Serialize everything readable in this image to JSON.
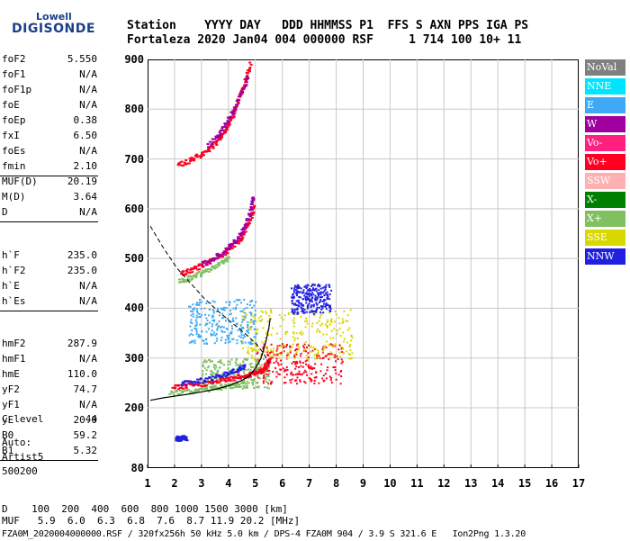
{
  "logo": {
    "line1": "Lowell",
    "line2": "DIGISONDE"
  },
  "header": {
    "row1": "Station    YYYY DAY   DDD HHMMSS P1  FFS S AXN PPS IGA PS",
    "row2": "Fortaleza 2020 Jan04 004 000000 RSF     1 714 100 10+ 11"
  },
  "params": {
    "group1": [
      {
        "name": "foF2",
        "value": "5.550"
      },
      {
        "name": "foF1",
        "value": "N/A"
      },
      {
        "name": "foF1p",
        "value": "N/A"
      },
      {
        "name": "foE",
        "value": "N/A"
      },
      {
        "name": "foEp",
        "value": "0.38"
      },
      {
        "name": "fxI",
        "value": "6.50"
      },
      {
        "name": "foEs",
        "value": "N/A"
      },
      {
        "name": "fmin",
        "value": "2.10"
      }
    ],
    "group2": [
      {
        "name": "MUF(D)",
        "value": "20.19"
      },
      {
        "name": "M(D)",
        "value": "3.64"
      },
      {
        "name": "D",
        "value": "N/A"
      }
    ],
    "group3": [
      {
        "name": "h`F",
        "value": "235.0"
      },
      {
        "name": "h`F2",
        "value": "235.0"
      },
      {
        "name": "h`E",
        "value": "N/A"
      },
      {
        "name": "h`Es",
        "value": "N/A"
      }
    ],
    "group4": [
      {
        "name": "hmF2",
        "value": "287.9"
      },
      {
        "name": "hmF1",
        "value": "N/A"
      },
      {
        "name": "hmE",
        "value": "110.0"
      },
      {
        "name": "yF2",
        "value": "74.7"
      },
      {
        "name": "yF1",
        "value": "N/A"
      },
      {
        "name": "yE",
        "value": "20.0"
      },
      {
        "name": "B0",
        "value": "59.2"
      },
      {
        "name": "B1",
        "value": "5.32"
      }
    ],
    "group5": [
      {
        "name": "C-level",
        "value": "44"
      }
    ]
  },
  "auto": {
    "line1": "Auto:",
    "line2": "Artist5",
    "line3": "500200"
  },
  "legend": [
    {
      "label": "NoVal",
      "color": "#808080",
      "text": "#ffffff"
    },
    {
      "label": "NNE",
      "color": "#00e5ff",
      "text": "#ffffff"
    },
    {
      "label": "E",
      "color": "#3fa9f5",
      "text": "#ffffff"
    },
    {
      "label": "W",
      "color": "#a000a0",
      "text": "#ffffff"
    },
    {
      "label": "Vo-",
      "color": "#ff2080",
      "text": "#ffffff"
    },
    {
      "label": "Vo+",
      "color": "#ff0020",
      "text": "#ffffff"
    },
    {
      "label": "SSW",
      "color": "#ffb0b0",
      "text": "#ffffff"
    },
    {
      "label": "X-",
      "color": "#008000",
      "text": "#ffffff"
    },
    {
      "label": "X+",
      "color": "#80c060",
      "text": "#ffffff"
    },
    {
      "label": "SSE",
      "color": "#d8d800",
      "text": "#ffffff"
    },
    {
      "label": "NNW",
      "color": "#2020e0",
      "text": "#ffffff"
    }
  ],
  "footer": {
    "row_d": "D    100  200  400  600  800 1000 1500 3000 [km]",
    "row_muf": "MUF   5.9  6.0  6.3  6.8  7.6  8.7 11.9 20.2 [MHz]",
    "file": "FZA0M_2020004000000.RSF / 320fx256h 50 kHz 5.0 km / DPS-4 FZA0M 904 / 3.9 S 321.6 E   Ion2Png 1.3.20"
  },
  "chart_data": {
    "type": "scatter",
    "title": "",
    "xlabel": "",
    "ylabel": "",
    "xlim": [
      1,
      17
    ],
    "ylim": [
      80,
      900
    ],
    "x_ticks": [
      1,
      2,
      3,
      4,
      5,
      6,
      7,
      8,
      9,
      10,
      11,
      12,
      13,
      14,
      15,
      16,
      17
    ],
    "y_ticks": [
      80,
      200,
      300,
      400,
      500,
      600,
      700,
      800,
      900
    ],
    "grid": true,
    "legend_placement": "right",
    "traces": [
      {
        "name": "Vo+",
        "color": "#ff0020",
        "points": [
          [
            1.9,
            242
          ],
          [
            2.3,
            245
          ],
          [
            2.8,
            248
          ],
          [
            3.3,
            252
          ],
          [
            3.8,
            258
          ],
          [
            4.2,
            262
          ],
          [
            4.6,
            266
          ],
          [
            4.9,
            270
          ],
          [
            5.1,
            275
          ],
          [
            5.3,
            280
          ],
          [
            5.4,
            290
          ],
          [
            5.5,
            300
          ]
        ]
      },
      {
        "name": "NNW",
        "color": "#2020e0",
        "points": [
          [
            2.2,
            250
          ],
          [
            2.8,
            255
          ],
          [
            3.4,
            262
          ],
          [
            3.9,
            270
          ],
          [
            4.3,
            278
          ],
          [
            4.6,
            285
          ]
        ]
      },
      {
        "name": "X+",
        "color": "#80c060",
        "points": [
          [
            1.8,
            230
          ],
          [
            2.4,
            234
          ],
          [
            3.0,
            238
          ],
          [
            3.6,
            242
          ],
          [
            4.1,
            246
          ],
          [
            4.6,
            250
          ]
        ]
      },
      {
        "name": "Vo+",
        "color": "#ff0020",
        "points": [
          [
            2.2,
            470
          ],
          [
            2.6,
            478
          ],
          [
            3.0,
            488
          ],
          [
            3.4,
            500
          ],
          [
            3.8,
            512
          ],
          [
            4.1,
            525
          ],
          [
            4.4,
            540
          ],
          [
            4.6,
            560
          ],
          [
            4.8,
            585
          ],
          [
            4.9,
            610
          ]
        ]
      },
      {
        "name": "W",
        "color": "#a000a0",
        "points": [
          [
            3.0,
            490
          ],
          [
            3.4,
            500
          ],
          [
            3.8,
            515
          ],
          [
            4.1,
            530
          ],
          [
            4.4,
            548
          ],
          [
            4.6,
            570
          ],
          [
            4.8,
            600
          ],
          [
            4.9,
            630
          ]
        ]
      },
      {
        "name": "X+",
        "color": "#80c060",
        "points": [
          [
            2.1,
            455
          ],
          [
            2.5,
            462
          ],
          [
            2.9,
            470
          ],
          [
            3.3,
            480
          ],
          [
            3.7,
            492
          ],
          [
            4.0,
            505
          ]
        ]
      },
      {
        "name": "Vo+",
        "color": "#ff0020",
        "points": [
          [
            2.1,
            690
          ],
          [
            2.5,
            698
          ],
          [
            2.9,
            708
          ],
          [
            3.2,
            720
          ],
          [
            3.5,
            735
          ],
          [
            3.8,
            755
          ],
          [
            4.0,
            775
          ],
          [
            4.2,
            800
          ],
          [
            4.4,
            830
          ],
          [
            4.6,
            860
          ],
          [
            4.8,
            895
          ]
        ]
      },
      {
        "name": "W",
        "color": "#a000a0",
        "points": [
          [
            3.2,
            730
          ],
          [
            3.6,
            750
          ],
          [
            3.9,
            775
          ],
          [
            4.2,
            805
          ],
          [
            4.5,
            840
          ],
          [
            4.7,
            870
          ]
        ]
      },
      {
        "name": "NNW",
        "color": "#2020e0",
        "points": [
          [
            2.0,
            140
          ],
          [
            2.1,
            140
          ],
          [
            2.2,
            141
          ],
          [
            2.3,
            141
          ],
          [
            2.4,
            140
          ]
        ]
      }
    ],
    "clusters": [
      {
        "name": "Vo+",
        "color": "#ff0020",
        "x": [
          5.0,
          8.3
        ],
        "y": [
          250,
          330
        ]
      },
      {
        "name": "SSE",
        "color": "#d8d800",
        "x": [
          4.4,
          8.6
        ],
        "y": [
          300,
          400
        ]
      },
      {
        "name": "E",
        "color": "#3fa9f5",
        "x": [
          2.5,
          5.0
        ],
        "y": [
          330,
          420
        ]
      },
      {
        "name": "X+",
        "color": "#80c060",
        "x": [
          3.0,
          5.5
        ],
        "y": [
          240,
          300
        ]
      },
      {
        "name": "NNW",
        "color": "#2020e0",
        "x": [
          6.3,
          7.8
        ],
        "y": [
          390,
          450
        ]
      }
    ],
    "scaled_profile": [
      [
        1.1,
        215
      ],
      [
        1.6,
        220
      ],
      [
        2.1,
        224
      ],
      [
        2.6,
        228
      ],
      [
        3.1,
        233
      ],
      [
        3.6,
        238
      ],
      [
        4.1,
        246
      ],
      [
        4.5,
        255
      ],
      [
        4.8,
        265
      ],
      [
        5.0,
        280
      ],
      [
        5.2,
        298
      ],
      [
        5.3,
        315
      ],
      [
        5.4,
        335
      ],
      [
        5.5,
        360
      ],
      [
        5.55,
        380
      ]
    ],
    "dashed_profile": [
      [
        1.1,
        565
      ],
      [
        1.6,
        520
      ],
      [
        2.1,
        480
      ],
      [
        2.6,
        450
      ],
      [
        3.1,
        420
      ],
      [
        3.6,
        395
      ],
      [
        4.1,
        372
      ],
      [
        4.6,
        350
      ],
      [
        5.0,
        330
      ],
      [
        5.3,
        310
      ],
      [
        5.5,
        290
      ]
    ]
  }
}
